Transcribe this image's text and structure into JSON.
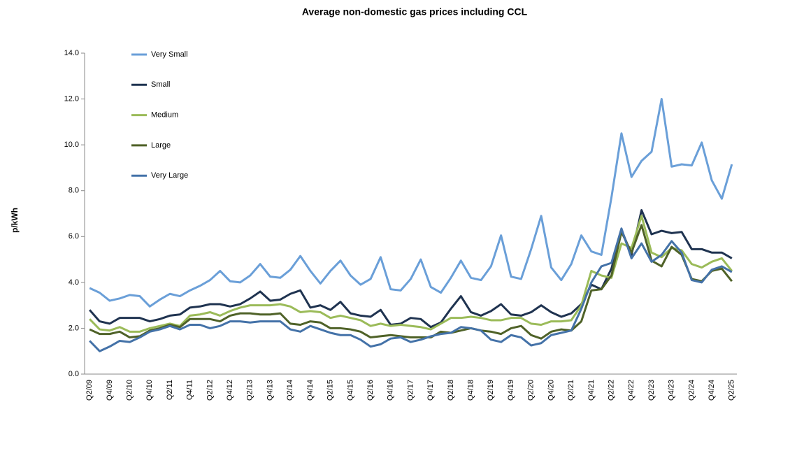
{
  "chart_data": {
    "type": "line",
    "title": "Average non-domestic gas prices including CCL",
    "y_label": "p/kWh",
    "categories": [
      "Q2/09",
      null,
      "Q4/09",
      null,
      "Q2/10",
      null,
      "Q4/10",
      null,
      "Q2/11",
      null,
      "Q4/11",
      null,
      "Q2/12",
      null,
      "Q4/12",
      null,
      "Q2/13",
      null,
      "Q4/13",
      null,
      "Q2/14",
      null,
      "Q4/14",
      null,
      "Q2/15",
      null,
      "Q4/15",
      null,
      "Q2/16",
      null,
      "Q4/16",
      null,
      "Q2/17",
      null,
      "Q4/17",
      null,
      "Q2/18",
      null,
      "Q4/18",
      null,
      "Q2/19",
      null,
      "Q4/19",
      null,
      "Q2/20",
      null,
      "Q4/20",
      null,
      "Q2/21",
      null,
      "Q4/21",
      null,
      "Q2/22",
      null,
      "Q4/22",
      null,
      "Q2/23",
      null,
      "Q4/23",
      null,
      "Q2/24",
      null,
      "Q4/24",
      null,
      "Q2/25"
    ],
    "series": [
      {
        "name": "Very Small",
        "color": "#6a9fd8",
        "values": [
          3.75,
          3.55,
          3.2,
          3.3,
          3.45,
          3.4,
          2.95,
          3.25,
          3.5,
          3.4,
          3.65,
          3.85,
          4.1,
          4.5,
          4.05,
          4.0,
          4.3,
          4.8,
          4.25,
          4.2,
          4.55,
          5.15,
          4.5,
          3.95,
          4.5,
          4.95,
          4.3,
          3.9,
          4.15,
          5.1,
          3.7,
          3.65,
          4.15,
          5.0,
          3.8,
          3.55,
          4.2,
          4.95,
          4.2,
          4.1,
          4.7,
          6.05,
          4.25,
          4.15,
          5.45,
          6.9,
          4.65,
          4.1,
          4.8,
          6.05,
          5.35,
          5.2,
          7.7,
          10.5,
          8.6,
          9.3,
          9.7,
          12.0,
          9.05,
          9.15,
          9.1,
          10.1,
          8.45,
          7.65,
          9.15
        ]
      },
      {
        "name": "Small",
        "color": "#1f3350",
        "values": [
          2.8,
          2.3,
          2.2,
          2.45,
          2.45,
          2.45,
          2.3,
          2.4,
          2.55,
          2.6,
          2.9,
          2.95,
          3.05,
          3.05,
          2.95,
          3.05,
          3.3,
          3.6,
          3.2,
          3.25,
          3.5,
          3.65,
          2.9,
          3.0,
          2.8,
          3.15,
          2.65,
          2.55,
          2.5,
          2.8,
          2.15,
          2.2,
          2.45,
          2.4,
          2.05,
          2.25,
          2.85,
          3.4,
          2.7,
          2.55,
          2.75,
          3.05,
          2.6,
          2.55,
          2.7,
          3.0,
          2.7,
          2.5,
          2.65,
          3.05,
          3.9,
          3.7,
          4.6,
          6.3,
          5.2,
          7.15,
          6.1,
          6.25,
          6.15,
          6.2,
          5.45,
          5.45,
          5.3,
          5.3,
          5.05
        ]
      },
      {
        "name": "Medium",
        "color": "#9bbb59",
        "values": [
          2.4,
          1.95,
          1.9,
          2.05,
          1.85,
          1.85,
          2.0,
          2.1,
          2.2,
          2.1,
          2.55,
          2.6,
          2.7,
          2.55,
          2.75,
          2.9,
          3.0,
          3.0,
          3.0,
          3.05,
          2.95,
          2.7,
          2.75,
          2.7,
          2.45,
          2.55,
          2.45,
          2.35,
          2.1,
          2.2,
          2.1,
          2.15,
          2.1,
          2.05,
          1.95,
          2.2,
          2.45,
          2.45,
          2.5,
          2.45,
          2.35,
          2.35,
          2.45,
          2.45,
          2.2,
          2.15,
          2.3,
          2.3,
          2.35,
          3.0,
          4.5,
          4.3,
          4.2,
          5.7,
          5.5,
          6.9,
          5.3,
          5.1,
          5.5,
          5.4,
          4.8,
          4.65,
          4.9,
          5.05,
          4.5
        ]
      },
      {
        "name": "Large",
        "color": "#4f6228",
        "values": [
          1.95,
          1.75,
          1.75,
          1.85,
          1.6,
          1.65,
          1.9,
          2.0,
          2.15,
          2.05,
          2.4,
          2.4,
          2.4,
          2.3,
          2.55,
          2.65,
          2.65,
          2.6,
          2.6,
          2.65,
          2.2,
          2.15,
          2.3,
          2.25,
          2.0,
          2.0,
          1.95,
          1.85,
          1.6,
          1.65,
          1.7,
          1.65,
          1.6,
          1.6,
          1.6,
          1.85,
          1.8,
          1.9,
          2.0,
          1.9,
          1.85,
          1.75,
          2.0,
          2.1,
          1.7,
          1.55,
          1.85,
          1.95,
          1.9,
          2.3,
          3.65,
          3.7,
          4.3,
          6.2,
          5.3,
          6.5,
          4.95,
          4.7,
          5.55,
          5.2,
          4.15,
          4.05,
          4.5,
          4.6,
          4.05
        ]
      },
      {
        "name": "Very Large",
        "color": "#4472a8",
        "values": [
          1.45,
          1.0,
          1.2,
          1.45,
          1.4,
          1.6,
          1.85,
          1.95,
          2.1,
          1.95,
          2.15,
          2.15,
          2.0,
          2.1,
          2.3,
          2.3,
          2.25,
          2.3,
          2.3,
          2.3,
          1.95,
          1.85,
          2.1,
          1.95,
          1.8,
          1.7,
          1.7,
          1.5,
          1.2,
          1.3,
          1.55,
          1.6,
          1.4,
          1.5,
          1.65,
          1.75,
          1.8,
          2.05,
          2.0,
          1.9,
          1.5,
          1.4,
          1.7,
          1.6,
          1.25,
          1.35,
          1.7,
          1.8,
          1.9,
          2.85,
          4.0,
          4.7,
          4.85,
          6.35,
          5.05,
          5.7,
          4.9,
          5.2,
          5.8,
          5.3,
          4.1,
          4.0,
          4.55,
          4.7,
          4.45
        ]
      }
    ],
    "ylim": [
      0,
      14
    ],
    "yticks": [
      {
        "value": 0,
        "label": "0.0"
      },
      {
        "value": 2,
        "label": "2.0"
      },
      {
        "value": 4,
        "label": "4.0"
      },
      {
        "value": 6,
        "label": "6.0"
      },
      {
        "value": 8,
        "label": "8.0"
      },
      {
        "value": 10,
        "label": "10.0"
      },
      {
        "value": 12,
        "label": "12.0"
      },
      {
        "value": 14,
        "label": "14.0"
      }
    ],
    "grid": false,
    "legend": "upper left"
  }
}
